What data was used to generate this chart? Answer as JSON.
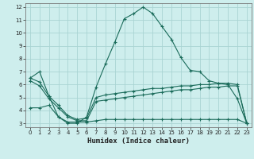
{
  "xlabel": "Humidex (Indice chaleur)",
  "bg_color": "#ceeeed",
  "grid_color": "#aad4d3",
  "line_color": "#1a6b5a",
  "xlim": [
    -0.5,
    23.5
  ],
  "ylim": [
    2.7,
    12.3
  ],
  "yticks": [
    3,
    4,
    5,
    6,
    7,
    8,
    9,
    10,
    11,
    12
  ],
  "xticks": [
    0,
    1,
    2,
    3,
    4,
    5,
    6,
    7,
    8,
    9,
    10,
    11,
    12,
    13,
    14,
    15,
    16,
    17,
    18,
    19,
    20,
    21,
    22,
    23
  ],
  "curve1_x": [
    0,
    1,
    2,
    3,
    4,
    5,
    6,
    7,
    8,
    9,
    10,
    11,
    12,
    13,
    14,
    15,
    16,
    17,
    18,
    19,
    20,
    21,
    22,
    23
  ],
  "curve1_y": [
    6.5,
    7.0,
    5.1,
    3.5,
    3.0,
    3.0,
    3.5,
    5.8,
    7.6,
    9.3,
    11.1,
    11.5,
    12.0,
    11.5,
    10.5,
    9.5,
    8.1,
    7.1,
    7.0,
    6.3,
    6.1,
    6.0,
    4.9,
    3.0
  ],
  "curve2_x": [
    0,
    1,
    2,
    3,
    4,
    5,
    6,
    7,
    8,
    9,
    10,
    11,
    12,
    13,
    14,
    15,
    16,
    17,
    18,
    19,
    20,
    21,
    22,
    23
  ],
  "curve2_y": [
    6.5,
    6.2,
    5.1,
    4.4,
    3.6,
    3.3,
    3.4,
    5.0,
    5.2,
    5.3,
    5.4,
    5.5,
    5.6,
    5.7,
    5.7,
    5.8,
    5.9,
    5.9,
    6.0,
    6.0,
    6.1,
    6.1,
    6.0,
    3.0
  ],
  "curve3_x": [
    0,
    1,
    2,
    3,
    4,
    5,
    6,
    7,
    8,
    9,
    10,
    11,
    12,
    13,
    14,
    15,
    16,
    17,
    18,
    19,
    20,
    21,
    22,
    23
  ],
  "curve3_y": [
    6.3,
    5.9,
    4.9,
    4.2,
    3.5,
    3.2,
    3.2,
    4.7,
    4.8,
    4.9,
    5.0,
    5.1,
    5.2,
    5.3,
    5.4,
    5.5,
    5.6,
    5.6,
    5.7,
    5.8,
    5.8,
    5.9,
    5.9,
    3.0
  ],
  "curve4_x": [
    0,
    1,
    2,
    3,
    4,
    5,
    6,
    7,
    8,
    9,
    10,
    11,
    12,
    13,
    14,
    15,
    16,
    17,
    18,
    19,
    20,
    21,
    22,
    23
  ],
  "curve4_y": [
    4.2,
    4.2,
    4.4,
    3.5,
    3.1,
    3.1,
    3.1,
    3.2,
    3.3,
    3.3,
    3.3,
    3.3,
    3.3,
    3.3,
    3.3,
    3.3,
    3.3,
    3.3,
    3.3,
    3.3,
    3.3,
    3.3,
    3.3,
    3.0
  ]
}
